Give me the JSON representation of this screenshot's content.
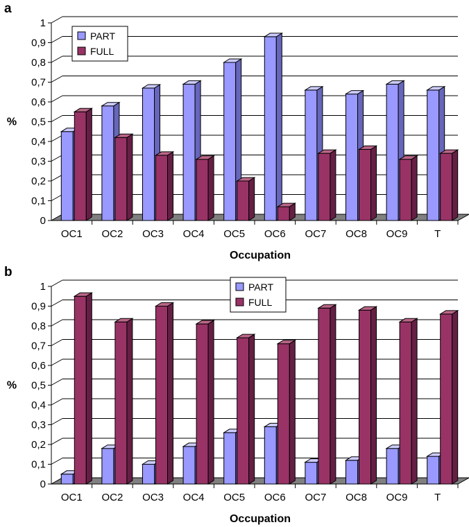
{
  "colors": {
    "part_front": "#9999ff",
    "part_side": "#6666bb",
    "part_top": "#ccccff",
    "full_front": "#993366",
    "full_side": "#661f44",
    "full_top": "#bb6688",
    "floor": "#808080",
    "grid": "#000000"
  },
  "chart_data": [
    {
      "panel_label": "a",
      "type": "bar",
      "categories": [
        "OC1",
        "OC2",
        "OC3",
        "OC4",
        "OC5",
        "OC6",
        "OC7",
        "OC8",
        "OC9",
        "T"
      ],
      "series": [
        {
          "name": "PART",
          "values": [
            0.45,
            0.58,
            0.67,
            0.69,
            0.8,
            0.93,
            0.66,
            0.64,
            0.69,
            0.66
          ]
        },
        {
          "name": "FULL",
          "values": [
            0.55,
            0.42,
            0.33,
            0.31,
            0.2,
            0.07,
            0.34,
            0.36,
            0.31,
            0.34
          ]
        }
      ],
      "xlabel": "Occupation",
      "ylabel": "%",
      "ylim": [
        0,
        1
      ],
      "yticks": [
        "0",
        "0,1",
        "0,2",
        "0,3",
        "0,4",
        "0,5",
        "0,6",
        "0,7",
        "0,8",
        "0,9",
        "1"
      ],
      "grid": true,
      "legend_position": "top-left"
    },
    {
      "panel_label": "b",
      "type": "bar",
      "categories": [
        "OC1",
        "OC2",
        "OC3",
        "OC4",
        "OC5",
        "OC6",
        "OC7",
        "OC8",
        "OC9",
        "T"
      ],
      "series": [
        {
          "name": "PART",
          "values": [
            0.05,
            0.18,
            0.1,
            0.19,
            0.26,
            0.29,
            0.11,
            0.12,
            0.18,
            0.14
          ]
        },
        {
          "name": "FULL",
          "values": [
            0.95,
            0.82,
            0.9,
            0.81,
            0.74,
            0.71,
            0.89,
            0.88,
            0.82,
            0.86
          ]
        }
      ],
      "xlabel": "Occupation",
      "ylabel": "%",
      "ylim": [
        0,
        1
      ],
      "yticks": [
        "0",
        "0,1",
        "0,2",
        "0,3",
        "0,4",
        "0,5",
        "0,6",
        "0,7",
        "0,8",
        "0,9",
        "1"
      ],
      "grid": true,
      "legend_position": "top-center"
    }
  ]
}
